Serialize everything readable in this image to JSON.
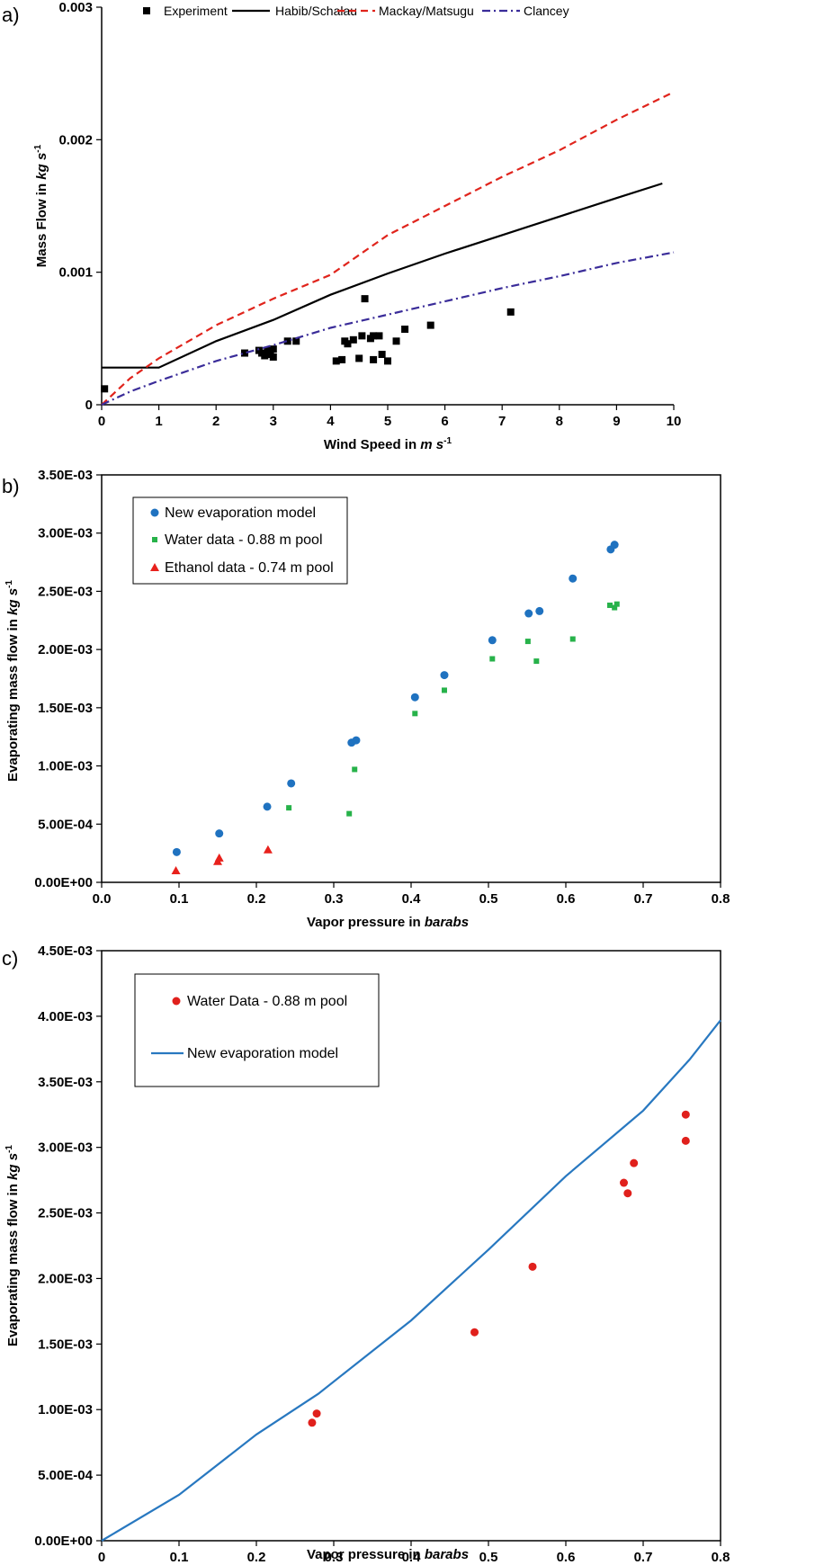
{
  "chart_data": [
    {
      "panel": "a)",
      "type": "line",
      "xlabel_prefix": "Wind Speed in ",
      "xlabel_unit": "m s",
      "xlabel_sup": "-1",
      "ylabel_prefix": "Mass Flow in ",
      "ylabel_unit": "kg s",
      "ylabel_sup": "-1",
      "xlim": [
        0,
        10
      ],
      "ylim": [
        0,
        0.003
      ],
      "xticks": [
        "0",
        "1",
        "2",
        "3",
        "4",
        "5",
        "6",
        "7",
        "8",
        "9",
        "10"
      ],
      "xtick_values": [
        0,
        1,
        2,
        3,
        4,
        5,
        6,
        7,
        8,
        9,
        10
      ],
      "yticks": [
        "0",
        "0.001",
        "0.002",
        "0.003"
      ],
      "ytick_values": [
        0,
        0.001,
        0.002,
        0.003
      ],
      "legend_position": "top",
      "series": [
        {
          "name": "Experiment",
          "kind": "scatter",
          "marker": "square",
          "color": "#000000",
          "points": [
            [
              0.05,
              0.00012
            ],
            [
              2.5,
              0.00039
            ],
            [
              2.75,
              0.00041
            ],
            [
              2.8,
              0.00039
            ],
            [
              2.85,
              0.00037
            ],
            [
              2.9,
              0.00041
            ],
            [
              2.95,
              0.00038
            ],
            [
              3.0,
              0.00036
            ],
            [
              3.0,
              0.00042
            ],
            [
              3.25,
              0.00048
            ],
            [
              3.4,
              0.00048
            ],
            [
              4.1,
              0.00033
            ],
            [
              4.2,
              0.00034
            ],
            [
              4.25,
              0.00048
            ],
            [
              4.3,
              0.00046
            ],
            [
              4.4,
              0.00049
            ],
            [
              4.5,
              0.00035
            ],
            [
              4.55,
              0.00052
            ],
            [
              4.6,
              0.0008
            ],
            [
              4.7,
              0.0005
            ],
            [
              4.75,
              0.00034
            ],
            [
              4.75,
              0.00052
            ],
            [
              4.85,
              0.00052
            ],
            [
              4.9,
              0.00038
            ],
            [
              5.0,
              0.00033
            ],
            [
              5.15,
              0.00048
            ],
            [
              5.3,
              0.00057
            ],
            [
              5.75,
              0.0006
            ],
            [
              7.15,
              0.0007
            ]
          ]
        },
        {
          "name": "Habib/Schalau",
          "kind": "line",
          "style": "solid",
          "color": "#000000",
          "points": [
            [
              0,
              0.00028
            ],
            [
              1.0,
              0.00028
            ],
            [
              2,
              0.00048
            ],
            [
              3,
              0.00064
            ],
            [
              4,
              0.00083
            ],
            [
              5,
              0.00099
            ],
            [
              6,
              0.00114
            ],
            [
              7,
              0.00128
            ],
            [
              8,
              0.00142
            ],
            [
              9,
              0.00156
            ],
            [
              9.8,
              0.00167
            ]
          ]
        },
        {
          "name": "Mackay/Matsugu",
          "kind": "line",
          "style": "dashed",
          "color": "#e0241c",
          "points": [
            [
              0,
              0
            ],
            [
              0.5,
              0.0002
            ],
            [
              1,
              0.00035
            ],
            [
              2,
              0.0006
            ],
            [
              3,
              0.0008
            ],
            [
              4,
              0.00098
            ],
            [
              5,
              0.00128
            ],
            [
              6,
              0.0015
            ],
            [
              7,
              0.00172
            ],
            [
              8,
              0.00192
            ],
            [
              9,
              0.00215
            ],
            [
              10,
              0.00236
            ]
          ]
        },
        {
          "name": "Clancey",
          "kind": "line",
          "style": "dashdot",
          "color": "#3a2c99",
          "points": [
            [
              0,
              0
            ],
            [
              0.5,
              0.0001
            ],
            [
              1,
              0.00018
            ],
            [
              2,
              0.00033
            ],
            [
              3,
              0.00045
            ],
            [
              4,
              0.00058
            ],
            [
              5,
              0.00068
            ],
            [
              6,
              0.00078
            ],
            [
              7,
              0.00088
            ],
            [
              8,
              0.00097
            ],
            [
              9,
              0.00107
            ],
            [
              10,
              0.00115
            ]
          ]
        }
      ]
    },
    {
      "panel": "b)",
      "type": "scatter",
      "xlabel_prefix": "Vapor pressure in ",
      "xlabel_unit": "barabs",
      "ylabel_prefix": "Evaporating mass flow in ",
      "ylabel_unit": "kg s",
      "ylabel_sup": "-1",
      "xlim": [
        0,
        0.8
      ],
      "ylim": [
        0,
        0.0035
      ],
      "xticks": [
        "0.0",
        "0.1",
        "0.2",
        "0.3",
        "0.4",
        "0.5",
        "0.6",
        "0.7",
        "0.8"
      ],
      "xtick_values": [
        0,
        0.1,
        0.2,
        0.3,
        0.4,
        0.5,
        0.6,
        0.7,
        0.8
      ],
      "yticks": [
        "0.00E+00",
        "5.00E-04",
        "1.00E-03",
        "1.50E-03",
        "2.00E-03",
        "2.50E-03",
        "3.00E-03",
        "3.50E-03"
      ],
      "ytick_values": [
        0,
        0.0005,
        0.001,
        0.0015,
        0.002,
        0.0025,
        0.003,
        0.0035
      ],
      "legend_position": "top-left",
      "series": [
        {
          "name": "New evaporation model",
          "kind": "scatter",
          "marker": "circle",
          "color": "#1f72c0",
          "points": [
            [
              0.097,
              0.00026
            ],
            [
              0.152,
              0.00042
            ],
            [
              0.214,
              0.00065
            ],
            [
              0.245,
              0.00085
            ],
            [
              0.323,
              0.0012
            ],
            [
              0.329,
              0.00122
            ],
            [
              0.405,
              0.00159
            ],
            [
              0.443,
              0.00178
            ],
            [
              0.505,
              0.00208
            ],
            [
              0.552,
              0.00231
            ],
            [
              0.566,
              0.00233
            ],
            [
              0.609,
              0.00261
            ],
            [
              0.658,
              0.00286
            ],
            [
              0.663,
              0.0029
            ]
          ]
        },
        {
          "name": "Water data - 0.88 m pool",
          "kind": "scatter",
          "marker": "square",
          "color": "#27b24a",
          "points": [
            [
              0.242,
              0.00064
            ],
            [
              0.32,
              0.00059
            ],
            [
              0.327,
              0.00097
            ],
            [
              0.405,
              0.00145
            ],
            [
              0.443,
              0.00165
            ],
            [
              0.505,
              0.00192
            ],
            [
              0.551,
              0.00207
            ],
            [
              0.562,
              0.0019
            ],
            [
              0.609,
              0.00209
            ],
            [
              0.657,
              0.00238
            ],
            [
              0.663,
              0.00236
            ],
            [
              0.666,
              0.00239
            ]
          ]
        },
        {
          "name": "Ethanol data - 0.74 m pool",
          "kind": "scatter",
          "marker": "triangle",
          "color": "#e8211c",
          "points": [
            [
              0.096,
              0.0001
            ],
            [
              0.15,
              0.00018
            ],
            [
              0.152,
              0.00021
            ],
            [
              0.215,
              0.00028
            ]
          ]
        }
      ]
    },
    {
      "panel": "c)",
      "type": "line",
      "xlabel_prefix": "Vapor pressure in ",
      "xlabel_unit": "barabs",
      "ylabel_prefix": "Evaporating mass flow in ",
      "ylabel_unit": "kg s",
      "ylabel_sup": "-1",
      "xlim": [
        0,
        0.8
      ],
      "ylim": [
        0,
        0.0045
      ],
      "xticks": [
        "0",
        "0.1",
        "0.2",
        "0.3",
        "0.4",
        "0.5",
        "0.6",
        "0.7",
        "0.8"
      ],
      "xtick_values": [
        0,
        0.1,
        0.2,
        0.3,
        0.4,
        0.5,
        0.6,
        0.7,
        0.8
      ],
      "yticks": [
        "0.00E+00",
        "5.00E-04",
        "1.00E-03",
        "1.50E-03",
        "2.00E-03",
        "2.50E-03",
        "3.00E-03",
        "3.50E-03",
        "4.00E-03",
        "4.50E-03"
      ],
      "ytick_values": [
        0,
        0.0005,
        0.001,
        0.0015,
        0.002,
        0.0025,
        0.003,
        0.0035,
        0.004,
        0.0045
      ],
      "legend_position": "top-left",
      "series": [
        {
          "name": "Water Data - 0.88 m pool",
          "kind": "scatter",
          "marker": "circle",
          "color": "#e0201c",
          "points": [
            [
              0.272,
              0.0009
            ],
            [
              0.278,
              0.00097
            ],
            [
              0.482,
              0.00159
            ],
            [
              0.557,
              0.00209
            ],
            [
              0.675,
              0.00273
            ],
            [
              0.68,
              0.00265
            ],
            [
              0.688,
              0.00288
            ],
            [
              0.755,
              0.00325
            ],
            [
              0.755,
              0.00305
            ]
          ]
        },
        {
          "name": "New evaporation model",
          "kind": "line",
          "style": "solid",
          "color": "#2878c0",
          "points": [
            [
              0,
              0
            ],
            [
              0.1,
              0.00035
            ],
            [
              0.2,
              0.00081
            ],
            [
              0.28,
              0.00112
            ],
            [
              0.4,
              0.00168
            ],
            [
              0.5,
              0.00222
            ],
            [
              0.6,
              0.00278
            ],
            [
              0.68,
              0.00318
            ],
            [
              0.7,
              0.00328
            ],
            [
              0.76,
              0.00367
            ],
            [
              0.8,
              0.00397
            ]
          ]
        }
      ]
    }
  ]
}
